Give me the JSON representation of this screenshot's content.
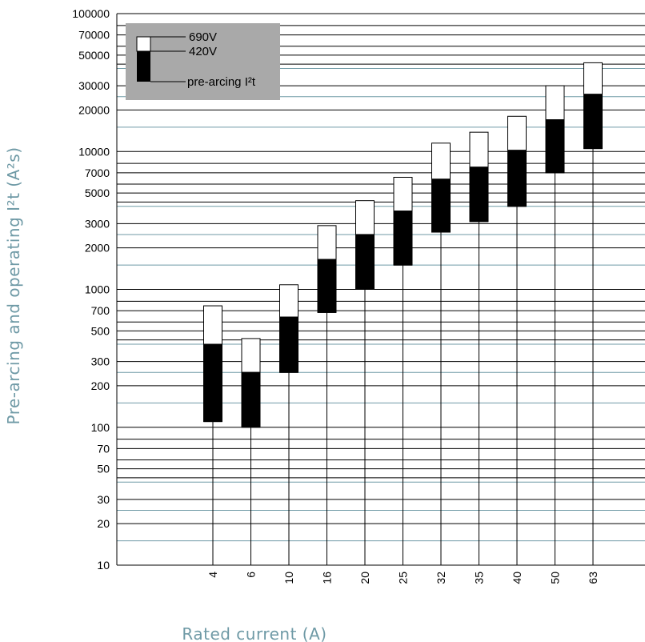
{
  "chart_data": {
    "type": "bar",
    "subtype": "floating-range",
    "ylabel": "Pre-arcing and operating I²t (A²s)",
    "xlabel": "Rated current (A)",
    "yscale": "log",
    "ylim": [
      10,
      100000
    ],
    "ytick_labels": [
      "10",
      "20",
      "30",
      "50",
      "70",
      "100",
      "200",
      "300",
      "500",
      "700",
      "1000",
      "2000",
      "3000",
      "5000",
      "7000",
      "10000",
      "20000",
      "30000",
      "50000",
      "70000",
      "100000"
    ],
    "ytick_values": [
      10,
      20,
      30,
      50,
      70,
      100,
      200,
      300,
      500,
      700,
      1000,
      2000,
      3000,
      5000,
      7000,
      10000,
      20000,
      30000,
      50000,
      70000,
      100000
    ],
    "categories": [
      "4",
      "6",
      "10",
      "16",
      "20",
      "25",
      "32",
      "35",
      "40",
      "50",
      "63"
    ],
    "series": [
      {
        "name": "pre-arcing I²t",
        "color": "#000000",
        "values": [
          110,
          100,
          250,
          680,
          1000,
          1500,
          2600,
          3100,
          4000,
          7000,
          10500
        ]
      },
      {
        "name": "420V",
        "color": "#000000",
        "values": [
          400,
          250,
          630,
          1650,
          2500,
          3700,
          6300,
          7700,
          10200,
          17000,
          26000
        ]
      },
      {
        "name": "690V",
        "color": "#ffffff",
        "values": [
          760,
          440,
          1080,
          2900,
          4400,
          6500,
          11500,
          13800,
          18000,
          30000,
          44000
        ]
      }
    ],
    "grid": true,
    "legend": {
      "placement": "top-left",
      "items": [
        {
          "label": "690V",
          "color": "#ffffff"
        },
        {
          "label": "420V",
          "color": "#000000"
        },
        {
          "label": "pre-arcing I²t",
          "color": "#000000"
        }
      ],
      "background": "#a9a9a9"
    },
    "colors": {
      "gridline_major": "#000000",
      "gridline_minor": "#6f9aa6",
      "axis_label": "#6f9aa6"
    }
  }
}
